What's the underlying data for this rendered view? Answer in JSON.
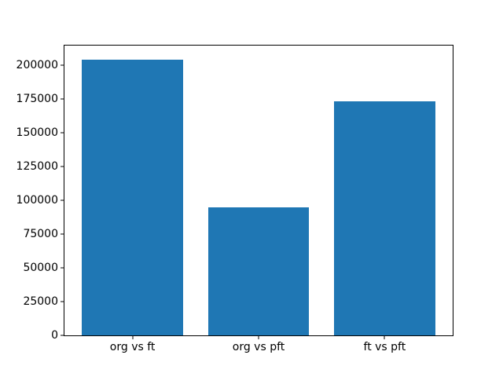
{
  "figure": {
    "background": "#ffffff"
  },
  "chart_data": {
    "type": "bar",
    "title": "",
    "xlabel": "",
    "ylabel": "",
    "categories": [
      "org vs ft",
      "org vs pft",
      "ft vs pft"
    ],
    "values": [
      204000,
      95000,
      173000
    ],
    "yticks": [
      0,
      25000,
      50000,
      75000,
      100000,
      125000,
      150000,
      175000,
      200000
    ],
    "ylim": [
      0,
      214500
    ],
    "bar_color": "#1f77b4",
    "axis_color": "#000000",
    "grid": false,
    "legend": null
  }
}
